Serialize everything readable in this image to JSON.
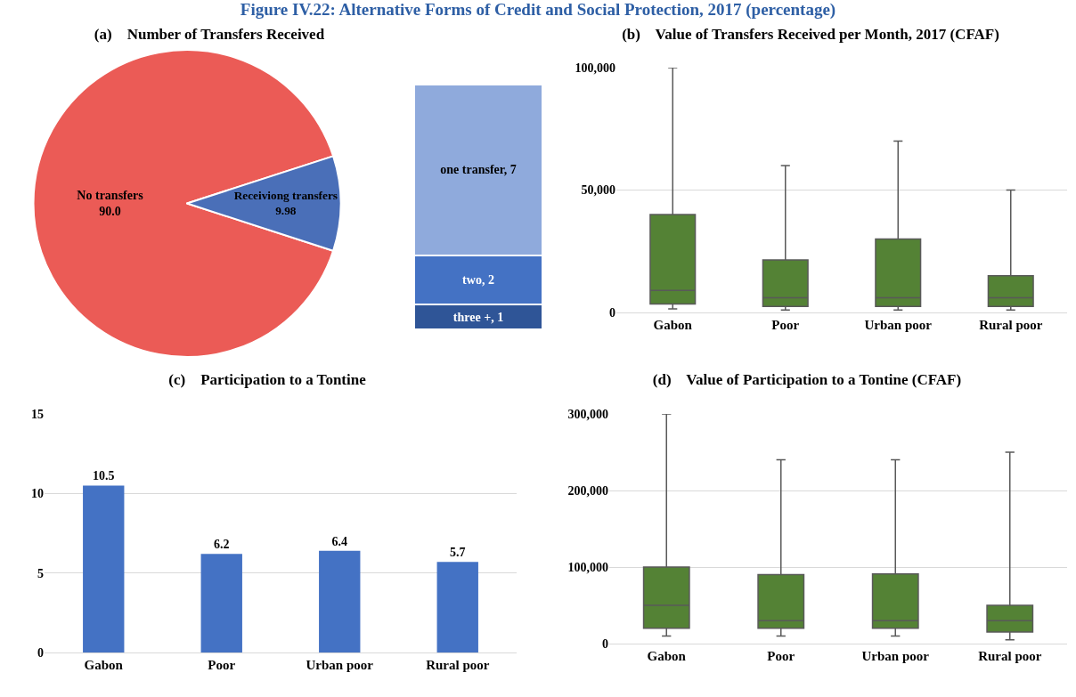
{
  "chart_data": [
    {
      "type": "pie",
      "title": "Figure IV.22: Alternative Forms of Credit and Social Protection, 2017 (percentage)",
      "subtitle": "(a)    Number of Transfers Received",
      "categories": [
        "No transfers",
        "Receiviong transfers"
      ],
      "values": [
        90.0,
        9.98
      ],
      "value_labels": [
        "90.0",
        "9.98"
      ],
      "colors": [
        "#eb5b56",
        "#4a6fb8"
      ],
      "legend": false
    },
    {
      "type": "bar",
      "stacked": true,
      "categories": [
        null
      ],
      "series": [
        {
          "color": "#2f5597",
          "values": [
            1
          ],
          "value_labels": [
            "three +, 1"
          ]
        },
        {
          "color": "#4472c4",
          "values": [
            2
          ],
          "value_labels": [
            "two, 2"
          ]
        },
        {
          "color": "#8faadc",
          "values": [
            7
          ],
          "value_labels": [
            "one transfer, 7"
          ]
        }
      ],
      "legend": false
    },
    {
      "type": "box",
      "title": "(b)    Value of Transfers Received per Month, 2017 (CFAF)",
      "categories": [
        "Gabon",
        "Poor",
        "Urban poor",
        "Rural poor"
      ],
      "color": "#548235",
      "boxes": [
        {
          "low": 1500,
          "q1": 3500,
          "median": 9000,
          "q3": 40000,
          "high": 100000
        },
        {
          "low": 1000,
          "q1": 2500,
          "median": 6000,
          "q3": 21500,
          "high": 60000
        },
        {
          "low": 1000,
          "q1": 2500,
          "median": 6000,
          "q3": 30000,
          "high": 70000
        },
        {
          "low": 1000,
          "q1": 2500,
          "median": 6000,
          "q3": 15000,
          "high": 50000
        }
      ],
      "ylim": [
        0,
        100000
      ],
      "yticks": [
        0,
        {
          "value": 50000,
          "label": "50,000"
        },
        {
          "value": 100000,
          "label": "100,000"
        }
      ],
      "grid": "y",
      "legend": false
    },
    {
      "type": "bar",
      "title": "(c)    Participation to a Tontine",
      "categories": [
        "Gabon",
        "Poor",
        "Urban poor",
        "Rural poor"
      ],
      "values": [
        10.5,
        6.2,
        6.4,
        5.7
      ],
      "color": "#4472c4",
      "data_labels": true,
      "ylim": [
        0,
        15
      ],
      "yticks": [
        0,
        5,
        10,
        15
      ],
      "grid": "y",
      "legend": false
    },
    {
      "type": "box",
      "title": "(d)    Value of Participation to a Tontine (CFAF)",
      "categories": [
        "Gabon",
        "Poor",
        "Urban poor",
        "Rural poor"
      ],
      "color": "#548235",
      "boxes": [
        {
          "low": 10000,
          "q1": 20000,
          "median": 50000,
          "q3": 100000,
          "high": 300000
        },
        {
          "low": 10000,
          "q1": 20000,
          "median": 30000,
          "q3": 90000,
          "high": 240000
        },
        {
          "low": 10000,
          "q1": 20000,
          "median": 30000,
          "q3": 91000,
          "high": 240000
        },
        {
          "low": 5000,
          "q1": 15000,
          "median": 30000,
          "q3": 50000,
          "high": 250000
        }
      ],
      "ylim": [
        0,
        300000
      ],
      "yticks": [
        0,
        {
          "value": 100000,
          "label": "100,000"
        },
        {
          "value": 200000,
          "label": "200,000"
        },
        {
          "value": 300000,
          "label": "300,000"
        }
      ],
      "grid": "y",
      "legend": false
    }
  ]
}
